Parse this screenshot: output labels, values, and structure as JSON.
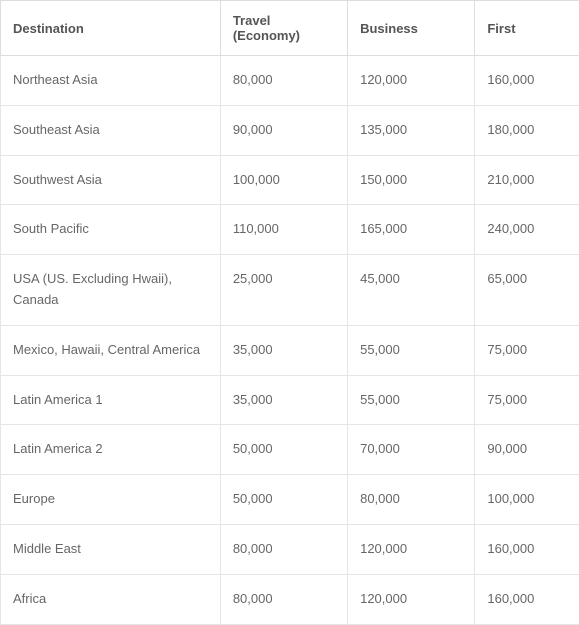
{
  "table": {
    "columns": [
      {
        "label": "Destination",
        "width": "38%"
      },
      {
        "label": "Travel (Economy)",
        "width": "22%"
      },
      {
        "label": "Business",
        "width": "22%"
      },
      {
        "label": "First",
        "width": "18%"
      }
    ],
    "rows": [
      {
        "destination": "Northeast Asia",
        "economy": "80,000",
        "business": "120,000",
        "first": "160,000"
      },
      {
        "destination": "Southeast Asia",
        "economy": "90,000",
        "business": "135,000",
        "first": "180,000"
      },
      {
        "destination": "Southwest Asia",
        "economy": "100,000",
        "business": "150,000",
        "first": "210,000"
      },
      {
        "destination": "South Pacific",
        "economy": "110,000",
        "business": "165,000",
        "first": "240,000"
      },
      {
        "destination": "USA (US. Excluding Hwaii), Canada",
        "economy": "25,000",
        "business": "45,000",
        "first": "65,000"
      },
      {
        "destination": "Mexico, Hawaii, Central America",
        "economy": "35,000",
        "business": "55,000",
        "first": "75,000"
      },
      {
        "destination": "Latin America 1",
        "economy": "35,000",
        "business": "55,000",
        "first": "75,000"
      },
      {
        "destination": "Latin America 2",
        "economy": "50,000",
        "business": "70,000",
        "first": "90,000"
      },
      {
        "destination": "Europe",
        "economy": "50,000",
        "business": "80,000",
        "first": "100,000"
      },
      {
        "destination": "Middle East",
        "economy": "80,000",
        "business": "120,000",
        "first": "160,000"
      },
      {
        "destination": "Africa",
        "economy": "80,000",
        "business": "120,000",
        "first": "160,000"
      }
    ],
    "header_bg": "#ffffff",
    "header_text_color": "#555555",
    "row_text_color": "#666666",
    "border_color": "#dddddd",
    "row_border_color": "#e5e5e5",
    "font_size": 13,
    "font_family": "Arial, Helvetica, sans-serif"
  }
}
